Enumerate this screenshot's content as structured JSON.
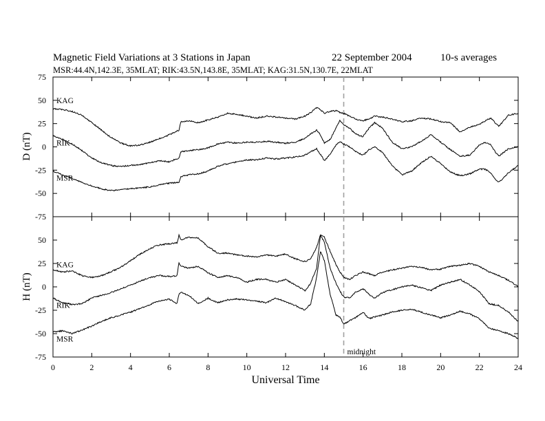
{
  "header": {
    "title": "Magnetic Field Variations at 3 Stations in Japan",
    "date": "22 September 2004",
    "averaging": "10-s averages",
    "stations_line": "MSR:44.4N,142.3E, 35MLAT;   RIK:43.5N,143.8E, 35MLAT;   KAG:31.5N,130.7E, 22MLAT"
  },
  "chart_data": [
    {
      "type": "line",
      "panel": "D",
      "ylabel": "D (nT)",
      "xlabel": "",
      "xlim": [
        0,
        24
      ],
      "ylim": [
        -75,
        75
      ],
      "yticks": [
        75,
        50,
        25,
        0,
        -25,
        -50,
        -75
      ],
      "xticks": [
        0,
        2,
        4,
        6,
        8,
        10,
        12,
        14,
        16,
        18,
        20,
        22,
        24
      ],
      "grid": false,
      "reference_line": {
        "x": 15,
        "style": "dashed",
        "color": "#a0a0a0"
      },
      "series": [
        {
          "name": "KAG",
          "x": [
            0,
            0.5,
            1,
            1.5,
            2,
            2.5,
            3,
            3.5,
            4,
            4.5,
            5,
            5.5,
            6,
            6.5,
            6.6,
            7,
            7.5,
            8,
            8.5,
            9,
            9.5,
            10,
            10.5,
            11,
            11.5,
            12,
            12.5,
            13,
            13.3,
            13.6,
            13.8,
            14,
            14.3,
            14.6,
            14.8,
            15,
            15.3,
            15.6,
            16,
            16.3,
            16.6,
            17,
            17.5,
            18,
            18.5,
            19,
            19.5,
            20,
            20.5,
            21,
            21.5,
            22,
            22.3,
            22.6,
            22.8,
            23,
            23.5,
            24
          ],
          "y": [
            41,
            40,
            38,
            34,
            26,
            18,
            10,
            4,
            1,
            2,
            5,
            9,
            13,
            18,
            27,
            28,
            26,
            29,
            32,
            36,
            35,
            33,
            31,
            33,
            32,
            31,
            30,
            33,
            37,
            42,
            40,
            36,
            38,
            39,
            37,
            36,
            33,
            30,
            28,
            30,
            33,
            32,
            30,
            27,
            28,
            31,
            30,
            27,
            26,
            16,
            21,
            24,
            28,
            31,
            26,
            22,
            34,
            36
          ]
        },
        {
          "name": "RIK",
          "x": [
            0,
            0.5,
            1,
            1.5,
            2,
            2.5,
            3,
            3.5,
            4,
            4.5,
            5,
            5.5,
            6,
            6.5,
            6.6,
            7,
            7.5,
            8,
            8.5,
            9,
            9.5,
            10,
            10.5,
            11,
            11.5,
            12,
            12.5,
            13,
            13.3,
            13.6,
            13.8,
            14,
            14.3,
            14.6,
            14.8,
            15,
            15.3,
            15.6,
            16,
            16.3,
            16.6,
            17,
            17.5,
            18,
            18.5,
            19,
            19.5,
            20,
            20.5,
            21,
            21.5,
            22,
            22.3,
            22.6,
            22.8,
            23,
            23.5,
            24
          ],
          "y": [
            12,
            8,
            3,
            -4,
            -12,
            -17,
            -20,
            -21,
            -20,
            -19,
            -17,
            -15,
            -16,
            -12,
            -5,
            -4,
            -3,
            -1,
            3,
            5,
            4,
            5,
            5,
            6,
            5,
            4,
            5,
            9,
            14,
            18,
            13,
            4,
            8,
            20,
            28,
            24,
            20,
            14,
            11,
            20,
            26,
            20,
            5,
            -2,
            0,
            6,
            13,
            5,
            -3,
            -10,
            -9,
            2,
            5,
            2,
            -5,
            -10,
            -2,
            0
          ]
        },
        {
          "name": "MSR",
          "x": [
            0,
            0.5,
            1,
            1.5,
            2,
            2.5,
            3,
            3.5,
            4,
            4.5,
            5,
            5.5,
            6,
            6.5,
            6.6,
            7,
            7.5,
            8,
            8.5,
            9,
            9.5,
            10,
            10.5,
            11,
            11.5,
            12,
            12.5,
            13,
            13.3,
            13.6,
            13.8,
            14,
            14.3,
            14.6,
            14.8,
            15,
            15.3,
            15.6,
            16,
            16.3,
            16.6,
            17,
            17.5,
            18,
            18.5,
            19,
            19.5,
            20,
            20.5,
            21,
            21.5,
            22,
            22.3,
            22.6,
            22.8,
            23,
            23.5,
            24
          ],
          "y": [
            -26,
            -30,
            -34,
            -38,
            -42,
            -45,
            -47,
            -46,
            -45,
            -44,
            -43,
            -41,
            -39,
            -38,
            -32,
            -30,
            -29,
            -26,
            -21,
            -18,
            -16,
            -14,
            -14,
            -12,
            -13,
            -12,
            -11,
            -9,
            -5,
            -2,
            -8,
            -15,
            -8,
            2,
            6,
            3,
            0,
            -5,
            -9,
            -3,
            0,
            -6,
            -20,
            -30,
            -26,
            -17,
            -10,
            -18,
            -27,
            -31,
            -29,
            -24,
            -24,
            -28,
            -34,
            -38,
            -28,
            -20
          ]
        }
      ]
    },
    {
      "type": "line",
      "panel": "H",
      "ylabel": "H (nT)",
      "xlabel": "Universal Time",
      "xlim": [
        0,
        24
      ],
      "ylim": [
        -75,
        75
      ],
      "yticks": [
        75,
        50,
        25,
        0,
        -25,
        -50,
        -75
      ],
      "xticks": [
        0,
        2,
        4,
        6,
        8,
        10,
        12,
        14,
        16,
        18,
        20,
        22,
        24
      ],
      "grid": false,
      "reference_line": {
        "x": 15,
        "style": "dashed",
        "color": "#a0a0a0",
        "label": "midnight"
      },
      "series": [
        {
          "name": "KAG",
          "x": [
            0,
            0.5,
            1,
            1.5,
            2,
            2.5,
            3,
            3.5,
            4,
            4.5,
            5,
            5.5,
            6,
            6.4,
            6.5,
            6.6,
            7,
            7.5,
            8,
            8.5,
            9,
            9.5,
            10,
            10.5,
            11,
            11.5,
            12,
            12.5,
            13,
            13.3,
            13.6,
            13.8,
            14,
            14.3,
            14.6,
            14.8,
            15,
            15.3,
            15.6,
            16,
            16.3,
            16.6,
            17,
            17.5,
            18,
            18.5,
            19,
            19.5,
            20,
            20.5,
            21,
            21.5,
            22,
            22.5,
            23,
            23.5,
            24
          ],
          "y": [
            18,
            16,
            17,
            12,
            10,
            12,
            16,
            21,
            28,
            35,
            41,
            45,
            46,
            47,
            55,
            50,
            53,
            52,
            43,
            36,
            36,
            34,
            33,
            32,
            34,
            33,
            35,
            30,
            27,
            30,
            42,
            56,
            53,
            38,
            24,
            16,
            10,
            8,
            12,
            16,
            14,
            12,
            16,
            18,
            20,
            22,
            21,
            18,
            19,
            22,
            23,
            25,
            22,
            16,
            12,
            7,
            0
          ]
        },
        {
          "name": "RIK",
          "x": [
            0,
            0.5,
            1,
            1.5,
            2,
            2.5,
            3,
            3.5,
            4,
            4.5,
            5,
            5.5,
            6,
            6.4,
            6.5,
            6.6,
            7,
            7.5,
            8,
            8.5,
            9,
            9.5,
            10,
            10.5,
            11,
            11.5,
            12,
            12.5,
            13,
            13.3,
            13.6,
            13.8,
            14,
            14.3,
            14.6,
            14.8,
            15,
            15.3,
            15.6,
            16,
            16.3,
            16.6,
            17,
            17.5,
            18,
            18.5,
            19,
            19.5,
            20,
            20.5,
            21,
            21.5,
            22,
            22.5,
            23,
            23.5,
            24
          ],
          "y": [
            -12,
            -17,
            -19,
            -18,
            -12,
            -9,
            -6,
            -2,
            2,
            6,
            10,
            12,
            11,
            12,
            26,
            22,
            20,
            22,
            15,
            10,
            12,
            10,
            5,
            8,
            8,
            5,
            8,
            2,
            -4,
            4,
            20,
            55,
            48,
            20,
            4,
            -4,
            -11,
            -12,
            -6,
            -2,
            -8,
            -12,
            -6,
            -3,
            0,
            2,
            -1,
            -4,
            2,
            5,
            8,
            2,
            -5,
            -18,
            -20,
            -27,
            -37
          ]
        },
        {
          "name": "MSR",
          "x": [
            0,
            0.5,
            1,
            1.5,
            2,
            2.5,
            3,
            3.5,
            4,
            4.5,
            5,
            5.5,
            6,
            6.4,
            6.5,
            6.6,
            7,
            7.5,
            8,
            8.5,
            9,
            9.5,
            10,
            10.5,
            11,
            11.5,
            12,
            12.5,
            13,
            13.3,
            13.6,
            13.8,
            14,
            14.3,
            14.6,
            14.8,
            15,
            15.3,
            15.6,
            16,
            16.3,
            16.6,
            17,
            17.5,
            18,
            18.5,
            19,
            19.5,
            20,
            20.5,
            21,
            21.5,
            22,
            22.5,
            23,
            23.5,
            24
          ],
          "y": [
            -48,
            -47,
            -50,
            -46,
            -42,
            -37,
            -33,
            -30,
            -27,
            -23,
            -19,
            -15,
            -13,
            -18,
            -8,
            -6,
            -9,
            -18,
            -12,
            -17,
            -14,
            -13,
            -14,
            -15,
            -17,
            -12,
            -16,
            -20,
            -25,
            -18,
            10,
            38,
            28,
            -8,
            -30,
            -32,
            -40,
            -36,
            -33,
            -27,
            -34,
            -32,
            -30,
            -27,
            -25,
            -24,
            -27,
            -30,
            -33,
            -30,
            -26,
            -29,
            -34,
            -44,
            -47,
            -50,
            -55
          ]
        }
      ]
    }
  ]
}
